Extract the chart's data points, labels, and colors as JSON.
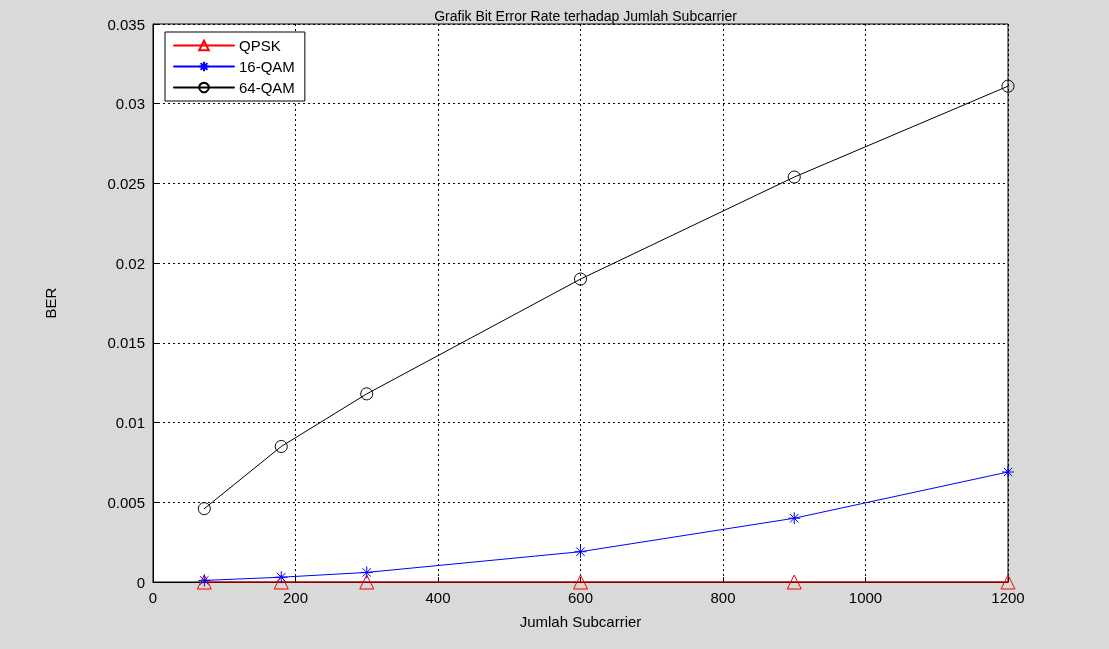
{
  "chart_data": {
    "type": "line",
    "title": "Grafik Bit Error Rate terhadap Jumlah Subcarrier",
    "xlabel": "Jumlah Subcarrier",
    "ylabel": "BER",
    "x": [
      72,
      180,
      300,
      600,
      900,
      1200
    ],
    "series": [
      {
        "name": "QPSK",
        "color": "#ff0000",
        "marker": "triangle",
        "values": [
          0,
          0,
          0,
          0,
          0,
          0
        ]
      },
      {
        "name": "16-QAM",
        "color": "#0000ff",
        "marker": "cross",
        "values": [
          0.0001,
          0.0003,
          0.0006,
          0.0019,
          0.004,
          0.0069
        ]
      },
      {
        "name": "64-QAM",
        "color": "#000000",
        "marker": "circle",
        "values": [
          0.0046,
          0.0085,
          0.0118,
          0.019,
          0.0254,
          0.0311
        ]
      }
    ],
    "xlim": [
      0,
      1200
    ],
    "xticks": [
      0,
      200,
      400,
      600,
      800,
      1000,
      1200
    ],
    "ylim": [
      0,
      0.035
    ],
    "yticks": [
      0,
      0.005,
      0.01,
      0.015,
      0.02,
      0.025,
      0.03,
      0.035
    ],
    "grid": true,
    "legend": "top left",
    "line_style": "solid"
  }
}
